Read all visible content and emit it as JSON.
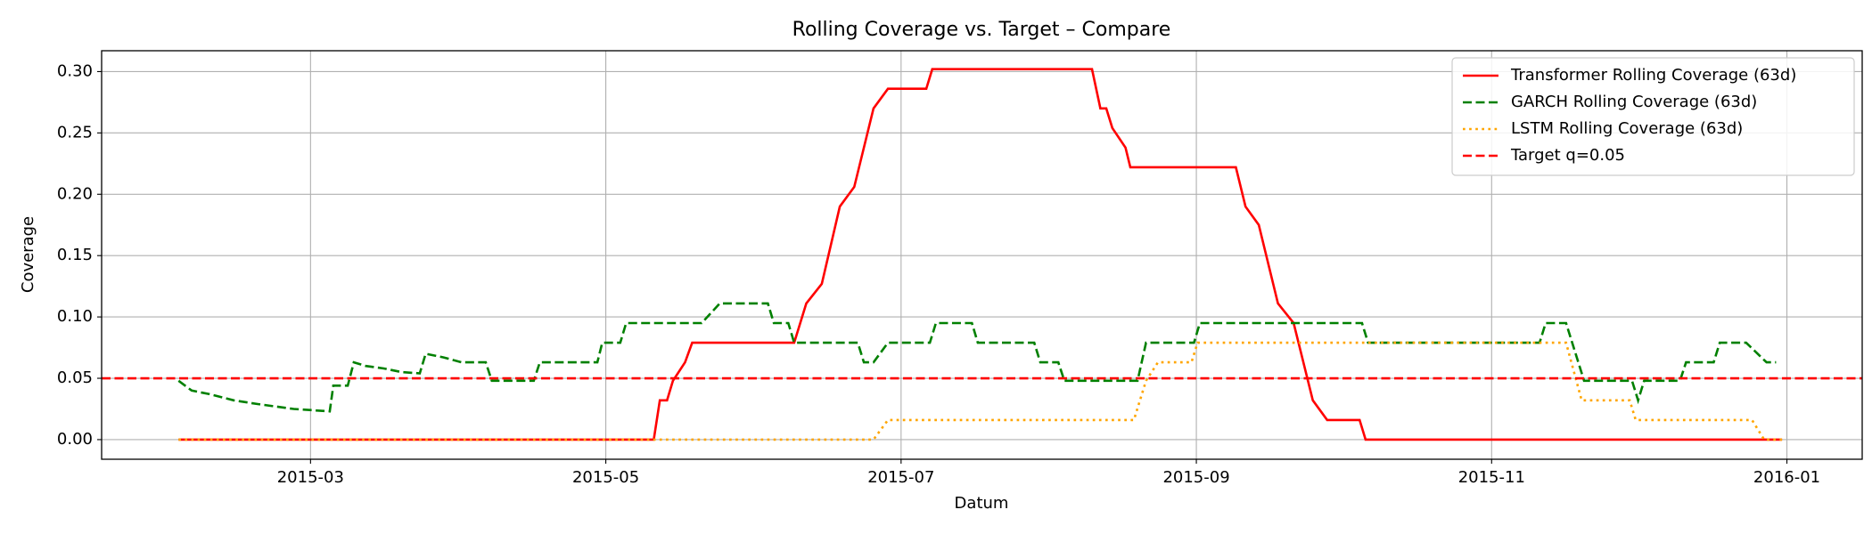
{
  "chart_data": {
    "type": "line",
    "title": "Rolling Coverage vs. Target – Compare",
    "x_label": "Datum",
    "y_label": "Coverage",
    "xlim": [
      1.585,
      13.51
    ],
    "xticks": [
      {
        "value": 3,
        "label": "2015-03"
      },
      {
        "value": 5,
        "label": "2015-05"
      },
      {
        "value": 7,
        "label": "2015-07"
      },
      {
        "value": 9,
        "label": "2015-09"
      },
      {
        "value": 11,
        "label": "2015-11"
      },
      {
        "value": 13,
        "label": "2016-01"
      }
    ],
    "ylim": [
      -0.016,
      0.317
    ],
    "yticks": [
      {
        "value": 0,
        "label": "0.00"
      },
      {
        "value": 0.05,
        "label": "0.05"
      },
      {
        "value": 0.1,
        "label": "0.10"
      },
      {
        "value": 0.15,
        "label": "0.15"
      },
      {
        "value": 0.2,
        "label": "0.20"
      },
      {
        "value": 0.25,
        "label": "0.25"
      },
      {
        "value": 0.3,
        "label": "0.30"
      }
    ],
    "grid": true,
    "legend_position": "upper-right",
    "series": [
      {
        "name": "Transformer Rolling Coverage (63d)",
        "color": "#ff0000",
        "style": "solid",
        "x": [
          2.106,
          5.325,
          5.366,
          5.415,
          5.455,
          5.537,
          5.585,
          6.276,
          6.358,
          6.463,
          6.585,
          6.683,
          6.813,
          6.911,
          7.171,
          7.211,
          8.293,
          8.35,
          8.39,
          8.431,
          8.52,
          8.553,
          9.268,
          9.333,
          9.423,
          9.553,
          9.659,
          9.789,
          9.886,
          10.106,
          10.146,
          12.967
        ],
        "values": [
          0,
          0,
          0.032,
          0.032,
          0.048,
          0.063,
          0.079,
          0.079,
          0.111,
          0.127,
          0.19,
          0.206,
          0.27,
          0.286,
          0.286,
          0.302,
          0.302,
          0.27,
          0.27,
          0.254,
          0.238,
          0.222,
          0.222,
          0.19,
          0.175,
          0.111,
          0.095,
          0.032,
          0.016,
          0.016,
          0,
          0
        ]
      },
      {
        "name": "GARCH Rolling Coverage (63d)",
        "color": "#008000",
        "style": "dashed",
        "x": [
          2.106,
          2.195,
          2.317,
          2.48,
          2.642,
          2.886,
          3.13,
          3.154,
          3.252,
          3.293,
          3.374,
          3.496,
          3.618,
          3.74,
          3.78,
          3.902,
          4.024,
          4.187,
          4.228,
          4.512,
          4.553,
          4.943,
          4.976,
          5.098,
          5.138,
          5.65,
          5.772,
          6.098,
          6.138,
          6.236,
          6.276,
          6.707,
          6.748,
          6.813,
          6.911,
          7.195,
          7.236,
          7.48,
          7.52,
          7.902,
          7.943,
          8.065,
          8.106,
          8.602,
          8.659,
          8.984,
          9.024,
          10.122,
          10.163,
          11.325,
          11.366,
          11.504,
          11.626,
          11.951,
          11.992,
          12.033,
          12.276,
          12.317,
          12.504,
          12.545,
          12.724,
          12.862,
          12.927
        ],
        "values": [
          0.048,
          0.04,
          0.037,
          0.032,
          0.029,
          0.025,
          0.023,
          0.044,
          0.044,
          0.063,
          0.06,
          0.058,
          0.055,
          0.054,
          0.07,
          0.067,
          0.063,
          0.063,
          0.048,
          0.048,
          0.063,
          0.063,
          0.079,
          0.079,
          0.095,
          0.095,
          0.111,
          0.111,
          0.095,
          0.095,
          0.079,
          0.079,
          0.063,
          0.063,
          0.079,
          0.079,
          0.095,
          0.095,
          0.079,
          0.079,
          0.063,
          0.063,
          0.048,
          0.048,
          0.079,
          0.079,
          0.095,
          0.095,
          0.079,
          0.079,
          0.095,
          0.095,
          0.048,
          0.048,
          0.032,
          0.048,
          0.048,
          0.063,
          0.063,
          0.079,
          0.079,
          0.063,
          0.063
        ]
      },
      {
        "name": "LSTM Rolling Coverage (63d)",
        "color": "#ffa500",
        "style": "dotted",
        "x": [
          2.106,
          6.813,
          6.911,
          8.577,
          8.659,
          8.74,
          8.967,
          9.008,
          11.504,
          11.61,
          11.935,
          11.976,
          12.764,
          12.846,
          12.967
        ],
        "values": [
          0,
          0,
          0.016,
          0.016,
          0.048,
          0.063,
          0.063,
          0.079,
          0.079,
          0.032,
          0.032,
          0.016,
          0.016,
          0,
          0
        ]
      }
    ],
    "reference_lines": [
      {
        "name": "Target q=0.05",
        "value": 0.05,
        "color": "#ff0000",
        "style": "dashed"
      }
    ]
  }
}
